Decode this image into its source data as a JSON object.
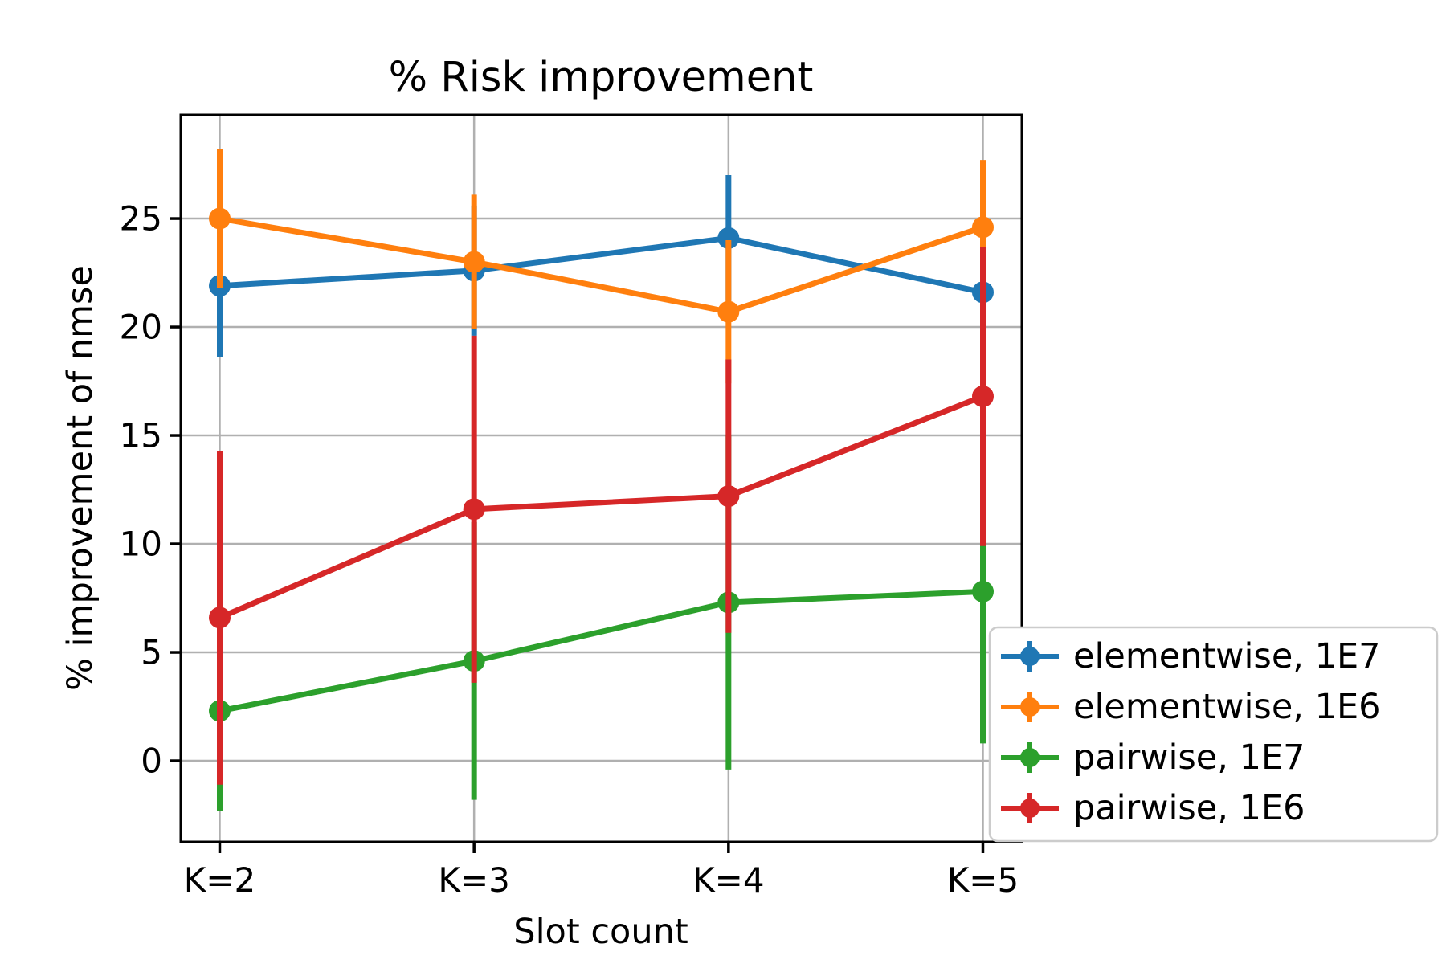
{
  "chart_data": {
    "type": "line",
    "title": "% Risk improvement",
    "xlabel": "Slot count",
    "ylabel": "% improvement of nmse",
    "categories": [
      "K=2",
      "K=3",
      "K=4",
      "K=5"
    ],
    "yticks": [
      0,
      5,
      10,
      15,
      20,
      25
    ],
    "ylim": [
      -3.74,
      29.78
    ],
    "grid": true,
    "legend_position": "lower right",
    "series": [
      {
        "name": "elementwise, 1E7",
        "color": "#1f77b4",
        "values": [
          21.9,
          22.6,
          24.1,
          21.6
        ],
        "yerr": [
          3.3,
          3.0,
          2.9,
          2.0
        ]
      },
      {
        "name": "elementwise, 1E6",
        "color": "#ff7f0e",
        "values": [
          25.0,
          23.0,
          20.7,
          24.6
        ],
        "yerr": [
          3.2,
          3.1,
          3.3,
          3.1
        ]
      },
      {
        "name": "pairwise, 1E7",
        "color": "#2ca02c",
        "values": [
          2.3,
          4.6,
          7.3,
          7.8
        ],
        "yerr": [
          4.6,
          6.4,
          7.7,
          7.0
        ]
      },
      {
        "name": "pairwise, 1E6",
        "color": "#d62728",
        "values": [
          6.6,
          11.6,
          12.2,
          16.8
        ],
        "yerr": [
          7.7,
          8.0,
          6.3,
          6.9
        ]
      }
    ],
    "style": {
      "grid_color": "#b0b0b0",
      "spine_color": "#000000",
      "legend_border_color": "#cccccc",
      "background": "#ffffff"
    }
  }
}
